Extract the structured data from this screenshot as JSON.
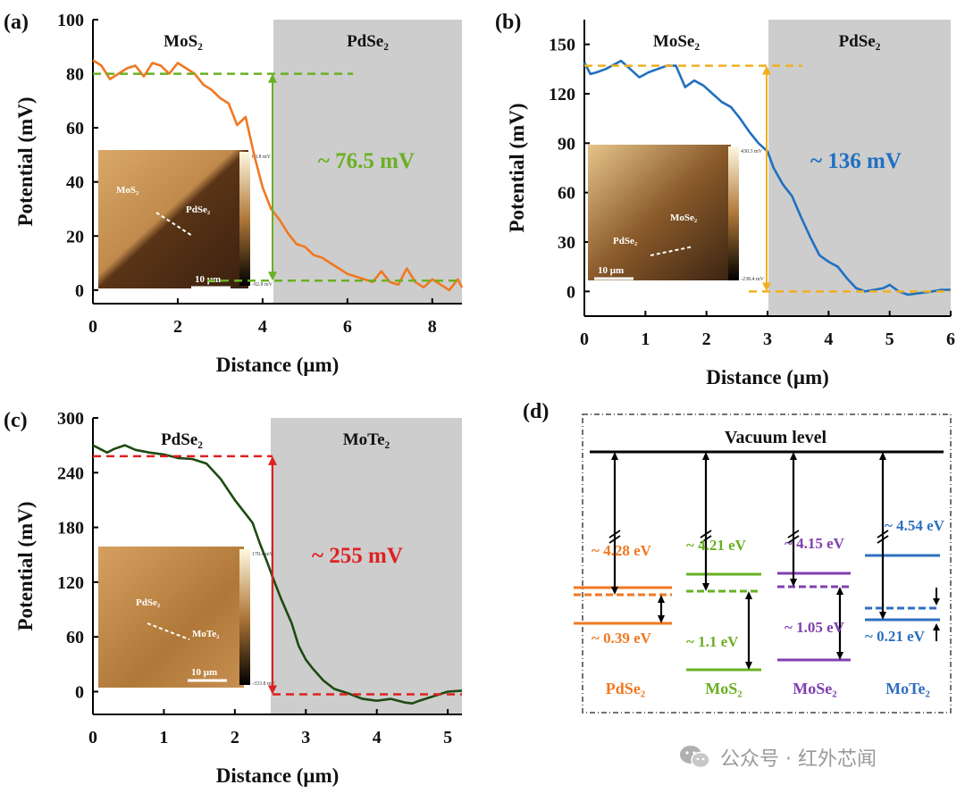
{
  "chart_data": [
    {
      "panel_label": "(a)",
      "type": "line",
      "xlabel": "Distance (μm)",
      "ylabel": "Potential (mV)",
      "xlim": [
        0,
        8.7
      ],
      "ylim": [
        -5,
        100
      ],
      "xticks": [
        "0",
        "2",
        "4",
        "6",
        "8"
      ],
      "yticks": [
        "0",
        "20",
        "40",
        "60",
        "80",
        "100"
      ],
      "regions": [
        {
          "label": "MoS₂",
          "x": [
            0,
            4.3
          ],
          "shaded": false
        },
        {
          "label": "PdSe₂",
          "x": [
            4.3,
            8.7
          ],
          "shaded": true
        }
      ],
      "annotation": "~ 76.5 mV",
      "colors": {
        "line": "#f07820",
        "guide": "#6ab023",
        "annotation": "#6ab023"
      },
      "reference_levels": [
        80,
        3.5
      ],
      "series": [
        {
          "x": [
            0,
            0.2,
            0.4,
            0.6,
            0.8,
            1.0,
            1.2,
            1.4,
            1.6,
            1.8,
            2.0,
            2.2,
            2.4,
            2.6,
            2.8,
            3.0,
            3.2,
            3.4,
            3.6,
            3.8,
            4.0,
            4.2,
            4.4,
            4.6,
            4.8,
            5.0,
            5.2,
            5.4,
            5.6,
            5.8,
            6.0,
            6.2,
            6.4,
            6.6,
            6.8,
            7.0,
            7.2,
            7.4,
            7.6,
            7.8,
            8.0,
            8.2,
            8.4,
            8.6,
            8.7
          ],
          "values": [
            85,
            83,
            78,
            80,
            82,
            83,
            79,
            84,
            83,
            80,
            84,
            82,
            80,
            76,
            74,
            71,
            69,
            61,
            64,
            50,
            38,
            30,
            26,
            21,
            17,
            16,
            13,
            12,
            10,
            8,
            6,
            5,
            4,
            3,
            7,
            3,
            2,
            8,
            3,
            1,
            4,
            2,
            0,
            4,
            1
          ]
        }
      ],
      "inset": {
        "labels": [
          "MoS₂",
          "PdSe₂"
        ],
        "scale_bar": "10 μm",
        "colorbar": [
          "63.8 mV",
          "-92.8 mV"
        ]
      }
    },
    {
      "panel_label": "(b)",
      "type": "line",
      "xlabel": "Distance (μm)",
      "ylabel": "Potential (mV)",
      "xlim": [
        0,
        6
      ],
      "ylim": [
        -15,
        165
      ],
      "xticks": [
        "0",
        "1",
        "2",
        "3",
        "4",
        "5",
        "6"
      ],
      "yticks": [
        "0",
        "30",
        "60",
        "90",
        "120",
        "150"
      ],
      "regions": [
        {
          "label": "MoSe₂",
          "x": [
            0,
            3
          ],
          "shaded": false
        },
        {
          "label": "PdSe₂",
          "x": [
            3,
            6
          ],
          "shaded": true
        }
      ],
      "annotation": "~ 136 mV",
      "colors": {
        "line": "#2070c0",
        "guide": "#f0b020",
        "annotation": "#2070c0"
      },
      "reference_levels": [
        137,
        0
      ],
      "series": [
        {
          "x": [
            0,
            0.1,
            0.2,
            0.35,
            0.5,
            0.6,
            0.75,
            0.9,
            1.05,
            1.2,
            1.35,
            1.5,
            1.65,
            1.8,
            1.95,
            2.1,
            2.25,
            2.4,
            2.55,
            2.7,
            2.85,
            3.0,
            3.1,
            3.25,
            3.4,
            3.55,
            3.7,
            3.85,
            4.0,
            4.15,
            4.3,
            4.45,
            4.6,
            4.75,
            4.9,
            5.0,
            5.15,
            5.3,
            5.5,
            5.7,
            5.85,
            6.0
          ],
          "values": [
            139,
            132,
            133,
            135,
            138,
            140,
            135,
            130,
            133,
            135,
            137,
            137,
            124,
            128,
            125,
            120,
            115,
            112,
            105,
            97,
            90,
            85,
            75,
            65,
            58,
            45,
            33,
            22,
            18,
            15,
            8,
            2,
            0,
            1,
            2,
            4,
            0,
            -2,
            -1,
            0,
            1,
            1
          ]
        }
      ],
      "inset": {
        "labels": [
          "MoSe₂",
          "PdSe₂"
        ],
        "scale_bar": "10 μm",
        "colorbar": [
          "430.3 mV",
          "-238.4 mV"
        ]
      }
    },
    {
      "panel_label": "(c)",
      "type": "line",
      "xlabel": "Distance (μm)",
      "ylabel": "Potential (mV)",
      "xlim": [
        0,
        5.2
      ],
      "ylim": [
        -25,
        300
      ],
      "xticks": [
        "0",
        "1",
        "2",
        "3",
        "4",
        "5"
      ],
      "yticks": [
        "0",
        "60",
        "120",
        "180",
        "240",
        "300"
      ],
      "regions": [
        {
          "label": "PdSe₂",
          "x": [
            0,
            2.5
          ],
          "shaded": false
        },
        {
          "label": "MoTe₂",
          "x": [
            2.5,
            5.2
          ],
          "shaded": true
        }
      ],
      "annotation": "~ 255 mV",
      "colors": {
        "line": "#1e4a12",
        "guide": "#e02020",
        "annotation": "#e02020"
      },
      "reference_levels": [
        258,
        -3
      ],
      "series": [
        {
          "x": [
            0,
            0.1,
            0.2,
            0.3,
            0.45,
            0.6,
            0.8,
            1.0,
            1.2,
            1.4,
            1.6,
            1.8,
            2.0,
            2.1,
            2.25,
            2.35,
            2.45,
            2.55,
            2.65,
            2.8,
            2.9,
            3.0,
            3.1,
            3.25,
            3.4,
            3.6,
            3.8,
            4.0,
            4.2,
            4.4,
            4.5,
            4.6,
            4.8,
            5.0,
            5.2
          ],
          "values": [
            270,
            266,
            262,
            266,
            270,
            265,
            262,
            260,
            256,
            255,
            250,
            233,
            210,
            200,
            185,
            163,
            143,
            122,
            102,
            75,
            50,
            35,
            25,
            12,
            3,
            -2,
            -8,
            -10,
            -8,
            -12,
            -13,
            -10,
            -5,
            0,
            1
          ]
        }
      ],
      "inset": {
        "labels": [
          "PdSe₂",
          "MoTe₂"
        ],
        "scale_bar": "10 μm",
        "colorbar": [
          "170.4 mV",
          "-333.8 mV"
        ]
      }
    },
    {
      "panel_label": "(d)",
      "type": "diagram",
      "title": "Vacuum level",
      "materials": [
        {
          "name": "PdSe₂",
          "color": "#f07820",
          "work_function": "~ 4.28 eV",
          "gap_label": "~ 0.39 eV"
        },
        {
          "name": "MoS₂",
          "color": "#6ab023",
          "work_function": "~ 4.21 eV",
          "gap_label": "~ 1.1 eV"
        },
        {
          "name": "MoSe₂",
          "color": "#8040b0",
          "work_function": "~ 4.15 eV",
          "gap_label": "~ 1.05 eV"
        },
        {
          "name": "MoTe₂",
          "color": "#2f6fc0",
          "work_function": "~ 4.54 eV",
          "gap_label": "~ 0.21 eV"
        }
      ]
    }
  ],
  "watermark": {
    "text": "公众号 · 红外芯闻",
    "icon": "wechat-icon"
  }
}
